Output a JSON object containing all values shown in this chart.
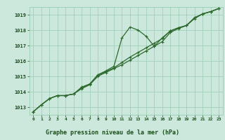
{
  "title": "Graphe pression niveau de la mer (hPa)",
  "x_values": [
    0,
    1,
    2,
    3,
    4,
    5,
    6,
    7,
    8,
    9,
    10,
    11,
    12,
    13,
    14,
    15,
    16,
    17,
    18,
    19,
    20,
    21,
    22,
    23
  ],
  "line1": [
    1012.7,
    1013.15,
    1013.55,
    1013.75,
    1013.75,
    1013.85,
    1014.3,
    1014.5,
    1015.1,
    1015.35,
    1015.65,
    1017.5,
    1018.2,
    1018.0,
    1017.6,
    1016.95,
    1017.5,
    1017.95,
    1018.15,
    1018.3,
    1018.8,
    1019.05,
    1019.2,
    1019.4
  ],
  "line2": [
    1012.7,
    1013.15,
    1013.55,
    1013.75,
    1013.75,
    1013.85,
    1014.25,
    1014.5,
    1015.05,
    1015.3,
    1015.55,
    1015.9,
    1016.25,
    1016.55,
    1016.85,
    1017.15,
    1017.45,
    1017.95,
    1018.15,
    1018.3,
    1018.8,
    1019.05,
    1019.2,
    1019.4
  ],
  "line3": [
    1012.7,
    1013.15,
    1013.55,
    1013.75,
    1013.75,
    1013.85,
    1014.2,
    1014.45,
    1015.0,
    1015.25,
    1015.5,
    1015.75,
    1016.05,
    1016.35,
    1016.65,
    1016.95,
    1017.25,
    1017.85,
    1018.1,
    1018.3,
    1018.75,
    1019.05,
    1019.2,
    1019.4
  ],
  "ylim": [
    1012.5,
    1019.5
  ],
  "yticks": [
    1013,
    1014,
    1015,
    1016,
    1017,
    1018,
    1019
  ],
  "xtick_labels": [
    "0",
    "1",
    "2",
    "3",
    "4",
    "5",
    "6",
    "7",
    "8",
    "9",
    "10",
    "11",
    "12",
    "13",
    "14",
    "15",
    "16",
    "17",
    "18",
    "19",
    "20",
    "21",
    "22",
    "23"
  ],
  "line_color": "#2d6a2d",
  "bg_color": "#cce8dc",
  "grid_color": "#99ccb3",
  "label_color": "#1a4d1a",
  "title_bg": "#2d6a2d",
  "title_fg": "#cce8dc",
  "marker": "+",
  "marker_size": 3.5,
  "line_width": 0.9
}
